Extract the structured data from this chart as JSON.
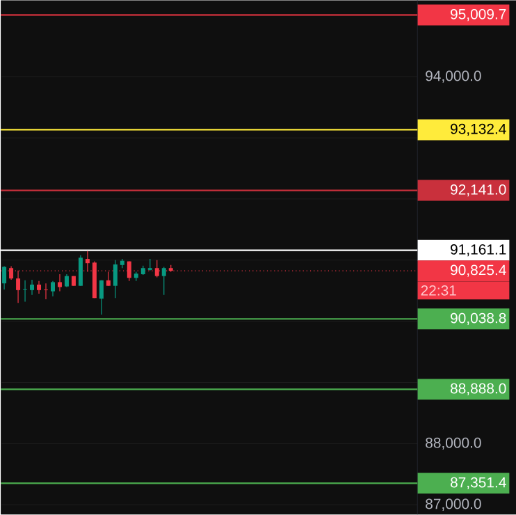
{
  "chart_data": {
    "type": "candlestick",
    "categories": [
      null,
      null,
      null,
      null,
      null,
      null,
      null,
      null,
      null,
      null,
      null,
      null,
      null,
      null,
      null,
      null,
      null,
      null,
      null,
      null,
      null,
      null,
      null,
      null,
      null,
      null,
      null,
      null,
      null,
      null,
      null,
      null,
      null,
      null,
      null,
      null,
      null,
      null,
      null,
      null,
      null,
      null,
      null,
      null,
      null,
      null,
      null,
      null,
      null,
      null,
      null,
      null,
      null,
      null,
      null,
      null,
      null,
      null,
      null,
      null
    ],
    "ohlc": [
      [
        90620,
        90900,
        90520,
        90890
      ],
      [
        90870,
        90900,
        90680,
        90700
      ],
      [
        90700,
        90830,
        90300,
        90510
      ],
      [
        90520,
        90670,
        90320,
        90530
      ],
      [
        90510,
        90680,
        90430,
        90600
      ],
      [
        90600,
        90660,
        90450,
        90510
      ],
      [
        90520,
        90620,
        90360,
        90510
      ],
      [
        90490,
        90660,
        90410,
        90640
      ],
      [
        90640,
        90770,
        90490,
        90560
      ],
      [
        90570,
        90770,
        90560,
        90740
      ],
      [
        90740,
        90740,
        90580,
        90580
      ],
      [
        90580,
        91080,
        90580,
        91040
      ],
      [
        91020,
        91150,
        90810,
        90950
      ],
      [
        90960,
        90980,
        90380,
        90380
      ],
      [
        90370,
        90670,
        90110,
        90670
      ],
      [
        90670,
        90810,
        90580,
        90580
      ],
      [
        90580,
        91000,
        90380,
        90930
      ],
      [
        90920,
        91020,
        90870,
        90990
      ],
      [
        90980,
        90980,
        90660,
        90710
      ],
      [
        90710,
        90810,
        90660,
        90780
      ],
      [
        90770,
        90910,
        90760,
        90870
      ],
      [
        90840,
        91020,
        90830,
        90870
      ],
      [
        90870,
        91000,
        90720,
        90740
      ],
      [
        90740,
        90890,
        90430,
        90870
      ],
      [
        90870,
        90920,
        90810,
        90825.4
      ],
      null,
      null,
      null,
      null,
      null,
      null,
      null,
      null,
      null,
      null,
      null,
      null,
      null,
      null,
      null,
      null,
      null,
      null,
      null,
      null,
      null,
      null,
      null,
      null,
      null,
      null,
      null,
      null,
      null,
      null,
      null,
      null,
      null,
      null,
      null
    ],
    "colors": [
      "#089981",
      "#f23645",
      "#f23645",
      "#089981",
      "#089981",
      "#f23645",
      "#f23645",
      "#089981",
      "#f23645",
      "#089981",
      "#f23645",
      "#089981",
      "#f23645",
      "#f23645",
      "#089981",
      "#f23645",
      "#089981",
      "#089981",
      "#f23645",
      "#089981",
      "#089981",
      "#089981",
      "#f23645",
      "#089981",
      "#f23645",
      null,
      null,
      null,
      null,
      null,
      null,
      null,
      null,
      null,
      null,
      null,
      null,
      null,
      null,
      null,
      null,
      null,
      null,
      null,
      null,
      null,
      null,
      null,
      null,
      null,
      null,
      null,
      null,
      null,
      null,
      null,
      null,
      null,
      null,
      null
    ],
    "ylim": [
      86840,
      95250
    ],
    "yticks": [
      {
        "value": 87000,
        "label": "87,000.0"
      },
      {
        "value": 88000,
        "label": "88,000.0"
      },
      {
        "value": 89000,
        "label": null
      },
      {
        "value": 90000,
        "label": null
      },
      {
        "value": 91000,
        "label": null
      },
      {
        "value": 92000,
        "label": null
      },
      {
        "value": 93000,
        "label": null
      },
      {
        "value": 94000,
        "label": "94,000.0"
      }
    ],
    "grid": "y",
    "tick_labels": "y",
    "ref_lines": [
      {
        "axis": "y",
        "value": 95009.7,
        "label": "95,009.7",
        "color": "#f23645"
      },
      {
        "axis": "y",
        "value": 93132.4,
        "label": "93,132.4",
        "color": "#ffeb3b"
      },
      {
        "axis": "y",
        "value": 92141.0,
        "label": "92,141.0",
        "color": "#c9303c"
      },
      {
        "axis": "y",
        "value": 91161.1,
        "label": "91,161.1",
        "color": "#ffffff"
      },
      {
        "axis": "y",
        "value": 90825.4,
        "label": "90,825.4",
        "color": "#f23645",
        "line_style": "dotted"
      },
      {
        "axis": "y",
        "value": 90038.8,
        "label": "90,038.8",
        "color": "#4caf50"
      },
      {
        "axis": "y",
        "value": 88888.0,
        "label": "88,888.0",
        "color": "#4caf50"
      },
      {
        "axis": "y",
        "value": 87351.4,
        "label": "87,351.4",
        "color": "#4caf50"
      }
    ],
    "annotations": [
      "22:31"
    ]
  }
}
